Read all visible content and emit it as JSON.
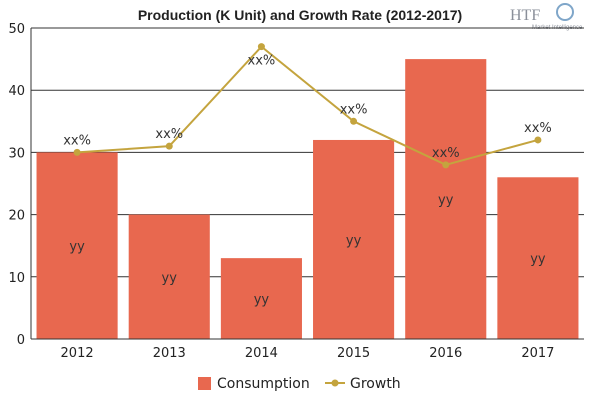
{
  "chart_data": {
    "type": "bar",
    "title": "Production (K Unit) and Growth Rate (2012-2017)",
    "categories": [
      "2012",
      "2013",
      "2014",
      "2015",
      "2016",
      "2017"
    ],
    "ylim": [
      0,
      50
    ],
    "yticks": [
      0,
      10,
      20,
      30,
      40,
      50
    ],
    "grid": true,
    "legend_position": "bottom-center",
    "series": [
      {
        "name": "Consumption",
        "type": "bar",
        "color": "#e8684f",
        "values": [
          30,
          20,
          13,
          32,
          45,
          26
        ],
        "data_labels": [
          "yy",
          "yy",
          "yy",
          "yy",
          "yy",
          "yy"
        ]
      },
      {
        "name": "Growth",
        "type": "line",
        "color": "#c4a43e",
        "values": [
          30,
          31,
          47,
          35,
          28,
          32
        ],
        "data_labels": [
          "xx%",
          "xx%",
          "xx%",
          "xx%",
          "xx%",
          "xx%"
        ]
      }
    ]
  },
  "logo": {
    "text": "HTF",
    "subtext": "Market Intelligence",
    "icon": "globe-icon"
  }
}
